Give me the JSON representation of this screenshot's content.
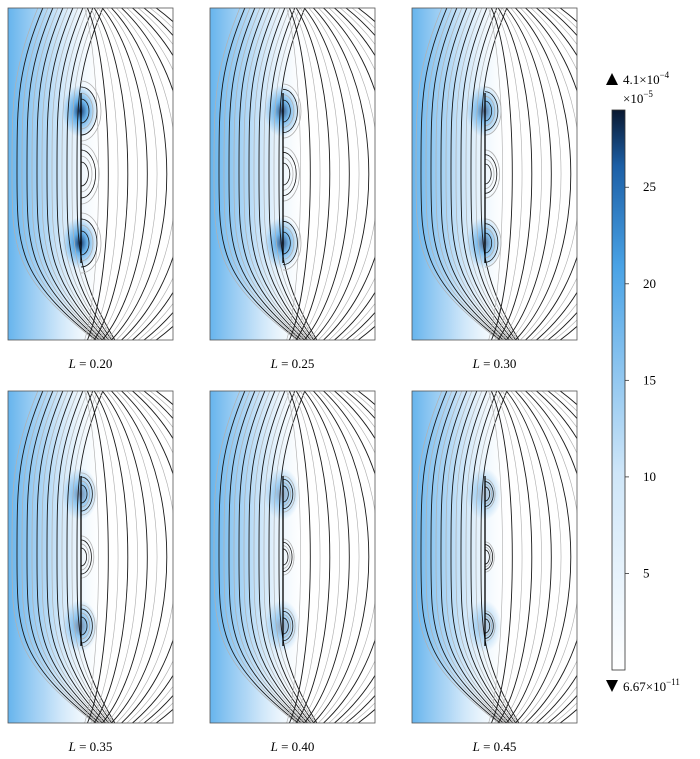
{
  "panels": [
    {
      "label_var": "L",
      "label_eq": " = ",
      "label_value": "0.20",
      "L": 0.2
    },
    {
      "label_var": "L",
      "label_eq": " = ",
      "label_value": "0.25",
      "L": 0.25
    },
    {
      "label_var": "L",
      "label_eq": " = ",
      "label_value": "0.30",
      "L": 0.3
    },
    {
      "label_var": "L",
      "label_eq": " = ",
      "label_value": "0.35",
      "L": 0.35
    },
    {
      "label_var": "L",
      "label_eq": " = ",
      "label_value": "0.40",
      "L": 0.4
    },
    {
      "label_var": "L",
      "label_eq": " = ",
      "label_value": "0.45",
      "L": 0.45
    }
  ],
  "colorbar": {
    "max_label": "4.1×10",
    "max_exp": "−4",
    "scale_label": "×10",
    "scale_exp": "−5",
    "min_label": "6.67×10",
    "min_exp": "−11",
    "ticks": [
      "5",
      "10",
      "15",
      "20",
      "25"
    ],
    "tick_values": [
      5,
      10,
      15,
      20,
      25
    ],
    "range": [
      0,
      29
    ],
    "color_low": "#ffffff",
    "color_mid": "#4aa3e6",
    "color_high": "#0a1830",
    "max_marker_icon": "triangle-up-icon",
    "min_marker_icon": "triangle-down-icon"
  },
  "colors": {
    "field_strong": "#3d9be3",
    "field_core": "#0b2a5a",
    "streamline_dark": "#1a1a1a",
    "streamline_light": "#b0b0b0",
    "frame": "#555555"
  }
}
